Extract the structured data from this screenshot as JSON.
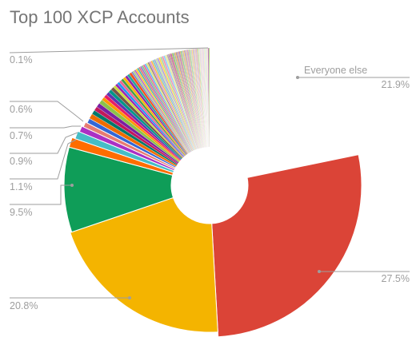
{
  "chart_data": {
    "type": "pie",
    "title": "Top 100 XCP Accounts",
    "hole": "donut",
    "slices": [
      {
        "label": "Everyone else",
        "value": 21.9,
        "color": "#e3e3e3",
        "labeled": true,
        "label_side": "right"
      },
      {
        "label": "",
        "value": 27.5,
        "color": "#db4437",
        "labeled": true,
        "label_side": "right"
      },
      {
        "label": "",
        "value": 20.8,
        "color": "#f4b400",
        "labeled": true,
        "label_side": "left"
      },
      {
        "label": "",
        "value": 9.5,
        "color": "#0f9d58",
        "labeled": true,
        "label_side": "left"
      },
      {
        "label": "",
        "value": 1.1,
        "color": "#ff6d00",
        "labeled": true,
        "label_side": "left"
      },
      {
        "label": "",
        "value": 0.9,
        "color": "#46bdc6",
        "labeled": true,
        "label_side": "left"
      },
      {
        "label": "",
        "value": 0.7,
        "color": "#ab30c4",
        "labeled": true,
        "label_side": "left"
      },
      {
        "label": "",
        "value": 0.6,
        "color": "#e67c73",
        "labeled": true,
        "label_side": "left"
      },
      {
        "label": "",
        "value": 0.6,
        "color": "#3367d6",
        "labeled": false
      },
      {
        "label": "",
        "value": 0.6,
        "color": "#ef6c00",
        "labeled": false
      },
      {
        "label": "",
        "value": 0.5,
        "color": "#00796b",
        "labeled": false
      },
      {
        "label": "",
        "value": 0.5,
        "color": "#c2185b",
        "labeled": false
      },
      {
        "label": "",
        "value": 0.5,
        "color": "#7b1fa2",
        "labeled": false
      },
      {
        "label": "",
        "value": 0.5,
        "color": "#8bc34a",
        "labeled": false
      },
      {
        "label": "",
        "value": 0.4,
        "color": "#ff9800",
        "labeled": false
      },
      {
        "label": "",
        "value": 0.4,
        "color": "#e91e63",
        "labeled": false
      },
      {
        "label": "",
        "value": 0.4,
        "color": "#5e35b1",
        "labeled": false
      },
      {
        "label": "",
        "value": 0.4,
        "color": "#009688",
        "labeled": false
      },
      {
        "label": "",
        "value": 0.4,
        "color": "#795548",
        "labeled": false
      },
      {
        "label": "",
        "value": 0.3,
        "color": "#cddc39",
        "labeled": false
      },
      {
        "label": "",
        "value": 0.3,
        "color": "#9c27b0",
        "labeled": false
      },
      {
        "label": "",
        "value": 0.3,
        "color": "#2196f3",
        "labeled": false
      },
      {
        "label": "",
        "value": 0.3,
        "color": "#f06292",
        "labeled": false
      },
      {
        "label": "",
        "value": 0.3,
        "color": "#43a047",
        "labeled": false
      },
      {
        "label": "",
        "value": 0.3,
        "color": "#ffb300",
        "labeled": false
      },
      {
        "label": "",
        "value": 0.3,
        "color": "#8e24aa",
        "labeled": false
      },
      {
        "label": "",
        "value": 0.3,
        "color": "#26a69a",
        "labeled": false
      },
      {
        "label": "",
        "value": 0.3,
        "color": "#f4511e",
        "labeled": false
      },
      {
        "label": "",
        "value": 0.2,
        "color": "#7986cb",
        "labeled": false
      },
      {
        "label": "",
        "value": 0.2,
        "color": "#aed581",
        "labeled": false
      },
      {
        "label": "",
        "value": 0.2,
        "color": "#ba68c8",
        "labeled": false
      },
      {
        "label": "",
        "value": 0.2,
        "color": "#ffca28",
        "labeled": false
      },
      {
        "label": "",
        "value": 0.2,
        "color": "#4db6ac",
        "labeled": false
      },
      {
        "label": "",
        "value": 0.2,
        "color": "#e57373",
        "labeled": false
      },
      {
        "label": "",
        "value": 0.2,
        "color": "#9575cd",
        "labeled": false
      },
      {
        "label": "",
        "value": 0.2,
        "color": "#81c784",
        "labeled": false
      },
      {
        "label": "",
        "value": 0.2,
        "color": "#f06292",
        "labeled": false
      },
      {
        "label": "",
        "value": 0.2,
        "color": "#64b5f6",
        "labeled": false
      },
      {
        "label": "",
        "value": 0.2,
        "color": "#dce775",
        "labeled": false
      },
      {
        "label": "",
        "value": 0.2,
        "color": "#a1887f",
        "labeled": false
      },
      {
        "label": "",
        "value": 0.2,
        "color": "#ce93d8",
        "labeled": false
      },
      {
        "label": "",
        "value": 0.2,
        "color": "#ffb74d",
        "labeled": false
      },
      {
        "label": "",
        "value": 0.2,
        "color": "#80cbc4",
        "labeled": false
      },
      {
        "label": "",
        "value": 0.2,
        "color": "#9fa8da",
        "labeled": false
      },
      {
        "label": "",
        "value": 0.2,
        "color": "#c5e1a5",
        "labeled": false
      },
      {
        "label": "",
        "value": 0.2,
        "color": "#b39ddb",
        "labeled": false
      },
      {
        "label": "",
        "value": 0.2,
        "color": "#ffd54f",
        "labeled": false
      },
      {
        "label": "",
        "value": 0.2,
        "color": "#a5d6a7",
        "labeled": false
      },
      {
        "label": "",
        "value": 0.2,
        "color": "#f48fb1",
        "labeled": false
      },
      {
        "label": "",
        "value": 0.2,
        "color": "#90caf9",
        "labeled": false
      },
      {
        "label": "",
        "value": 0.2,
        "color": "#e6ee9c",
        "labeled": false
      },
      {
        "label": "",
        "value": 0.2,
        "color": "#bcaaa4",
        "labeled": false
      },
      {
        "label": "",
        "value": 0.1,
        "color": "#9c27b0",
        "labeled": false
      },
      {
        "label": "",
        "value": 0.1,
        "color": "#8bc34a",
        "labeled": false
      },
      {
        "label": "",
        "value": 0.1,
        "color": "#e91e63",
        "labeled": false
      },
      {
        "label": "",
        "value": 0.1,
        "color": "#673ab7",
        "labeled": false
      },
      {
        "label": "",
        "value": 0.1,
        "color": "#ff9800",
        "labeled": false
      },
      {
        "label": "",
        "value": 0.1,
        "color": "#009688",
        "labeled": false
      },
      {
        "label": "",
        "value": 0.1,
        "color": "#cddc39",
        "labeled": false
      },
      {
        "label": "",
        "value": 0.1,
        "color": "#7e57c2",
        "labeled": false
      },
      {
        "label": "",
        "value": 0.1,
        "color": "#ffc107",
        "labeled": false
      },
      {
        "label": "",
        "value": 0.1,
        "color": "#8d6e63",
        "labeled": false
      },
      {
        "label": "",
        "value": 0.1,
        "color": "#ab47bc",
        "labeled": false
      },
      {
        "label": "",
        "value": 0.1,
        "color": "#9ccc65",
        "labeled": false
      },
      {
        "label": "",
        "value": 0.1,
        "color": "#ec407a",
        "labeled": false
      },
      {
        "label": "",
        "value": 0.1,
        "color": "#5c6bc0",
        "labeled": false
      },
      {
        "label": "",
        "value": 0.1,
        "color": "#ffa726",
        "labeled": false
      },
      {
        "label": "",
        "value": 0.1,
        "color": "#26a69a",
        "labeled": false
      },
      {
        "label": "",
        "value": 0.1,
        "color": "#d4e157",
        "labeled": false
      },
      {
        "label": "",
        "value": 0.1,
        "color": "#9575cd",
        "labeled": false
      },
      {
        "label": "",
        "value": 0.1,
        "color": "#ffca28",
        "labeled": false
      },
      {
        "label": "",
        "value": 0.1,
        "color": "#a1887f",
        "labeled": false
      },
      {
        "label": "",
        "value": 0.1,
        "color": "#ba68c8",
        "labeled": false
      },
      {
        "label": "",
        "value": 0.1,
        "color": "#aed581",
        "labeled": false
      },
      {
        "label": "",
        "value": 0.1,
        "color": "#f06292",
        "labeled": false
      },
      {
        "label": "",
        "value": 0.1,
        "color": "#7986cb",
        "labeled": false
      },
      {
        "label": "",
        "value": 0.1,
        "color": "#ffb74d",
        "labeled": false
      },
      {
        "label": "",
        "value": 0.1,
        "color": "#4db6ac",
        "labeled": false
      },
      {
        "label": "",
        "value": 0.1,
        "color": "#dce775",
        "labeled": false
      },
      {
        "label": "",
        "value": 0.1,
        "color": "#b39ddb",
        "labeled": false
      },
      {
        "label": "",
        "value": 0.1,
        "color": "#ffd54f",
        "labeled": false
      },
      {
        "label": "",
        "value": 0.1,
        "color": "#bcaaa4",
        "labeled": false
      },
      {
        "label": "",
        "value": 0.1,
        "color": "#ce93d8",
        "labeled": false
      },
      {
        "label": "",
        "value": 0.1,
        "color": "#c5e1a5",
        "labeled": false
      },
      {
        "label": "",
        "value": 0.1,
        "color": "#f48fb1",
        "labeled": false
      },
      {
        "label": "",
        "value": 0.1,
        "color": "#9fa8da",
        "labeled": false
      },
      {
        "label": "",
        "value": 0.1,
        "color": "#ffb74d",
        "labeled": false
      },
      {
        "label": "",
        "value": 0.1,
        "color": "#80cbc4",
        "labeled": false
      },
      {
        "label": "",
        "value": 0.1,
        "color": "#e6ee9c",
        "labeled": false
      },
      {
        "label": "",
        "value": 0.1,
        "color": "#d7ccc8",
        "labeled": false
      },
      {
        "label": "",
        "value": 0.1,
        "color": "#e1bee7",
        "labeled": false
      },
      {
        "label": "",
        "value": 0.1,
        "color": "#dcedc8",
        "labeled": false
      },
      {
        "label": "",
        "value": 0.1,
        "color": "#f8bbd0",
        "labeled": false
      },
      {
        "label": "",
        "value": 0.1,
        "color": "#c5cae9",
        "labeled": false
      },
      {
        "label": "",
        "value": 0.1,
        "color": "#ffe0b2",
        "labeled": false
      },
      {
        "label": "",
        "value": 0.1,
        "color": "#b2dfdb",
        "labeled": false
      },
      {
        "label": "",
        "value": 0.1,
        "color": "#f0f4c3",
        "labeled": false
      },
      {
        "label": "",
        "value": 0.1,
        "color": "#d1c4e9",
        "labeled": false
      },
      {
        "label": "",
        "value": 0.1,
        "color": "#ffecb3",
        "labeled": false
      },
      {
        "label": "",
        "value": 0.1,
        "color": "#9c27b0",
        "labeled": false
      },
      {
        "label": "",
        "value": 0.1,
        "color": "#8bc34a",
        "labeled": true,
        "label_side": "left"
      }
    ],
    "labels": {
      "everyone_else_name": "Everyone else",
      "everyone_else_pct": "21.9%",
      "red_pct": "27.5%",
      "yellow_pct": "20.8%",
      "green_pct": "9.5%",
      "orange_pct": "1.1%",
      "teal_pct": "0.9%",
      "purple_pct": "0.7%",
      "pink_pct": "0.6%",
      "top_pct": "0.1%"
    }
  }
}
